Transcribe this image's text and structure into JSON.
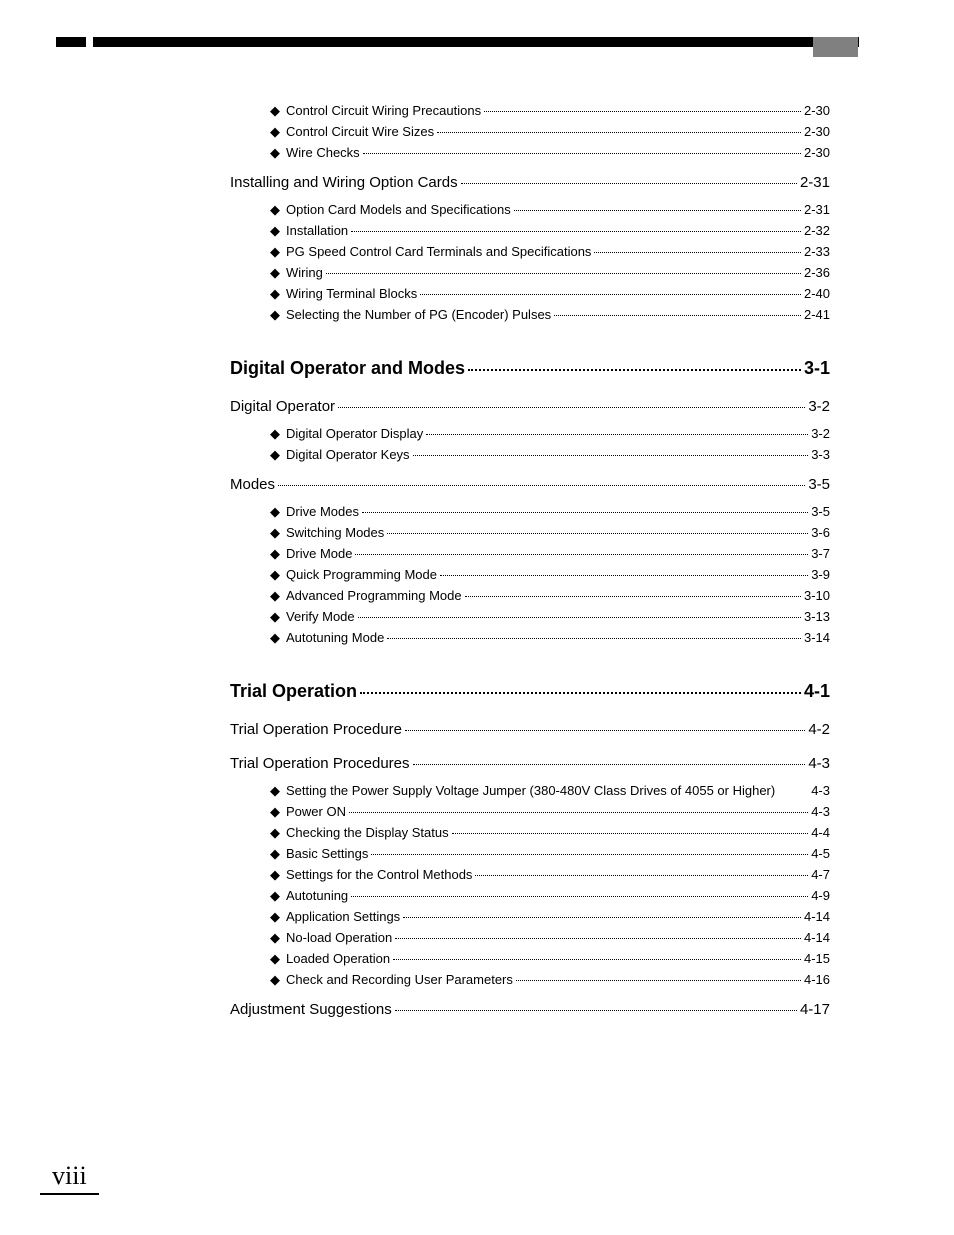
{
  "page_number": "viii",
  "colors": {
    "text": "#000000",
    "background": "#ffffff",
    "tab": "#808080"
  },
  "typography": {
    "sub_fontsize": 13,
    "section_fontsize": 15,
    "chapter_fontsize": 18,
    "pagenum_fontsize": 26
  },
  "toc": {
    "block1": {
      "subs_a": [
        {
          "label": "Control Circuit Wiring Precautions",
          "page": "2-30"
        },
        {
          "label": "Control Circuit Wire Sizes",
          "page": "2-30"
        },
        {
          "label": "Wire Checks",
          "page": "2-30"
        }
      ],
      "section1": {
        "label": "Installing and Wiring Option Cards",
        "page": "2-31"
      },
      "subs_b": [
        {
          "label": "Option Card Models and Specifications",
          "page": "2-31"
        },
        {
          "label": "Installation",
          "page": "2-32"
        },
        {
          "label": "PG Speed Control Card Terminals and Specifications",
          "page": "2-33"
        },
        {
          "label": "Wiring",
          "page": "2-36"
        },
        {
          "label": "Wiring Terminal Blocks",
          "page": "2-40"
        },
        {
          "label": "Selecting the Number of PG (Encoder) Pulses",
          "page": "2-41"
        }
      ]
    },
    "chapter3": {
      "num": "3",
      "title": "Digital Operator and Modes",
      "page": "3-1",
      "section1": {
        "label": "Digital Operator",
        "page": "3-2"
      },
      "subs_a": [
        {
          "label": "Digital Operator Display",
          "page": "3-2"
        },
        {
          "label": "Digital Operator Keys",
          "page": "3-3"
        }
      ],
      "section2": {
        "label": "Modes",
        "page": "3-5"
      },
      "subs_b": [
        {
          "label": "Drive Modes",
          "page": "3-5"
        },
        {
          "label": "Switching Modes",
          "page": "3-6"
        },
        {
          "label": "Drive Mode",
          "page": "3-7"
        },
        {
          "label": "Quick Programming Mode",
          "page": "3-9"
        },
        {
          "label": "Advanced Programming Mode",
          "page": "3-10"
        },
        {
          "label": "Verify Mode",
          "page": "3-13"
        },
        {
          "label": "Autotuning Mode",
          "page": "3-14"
        }
      ]
    },
    "chapter4": {
      "num": "4",
      "title": "Trial Operation",
      "page": "4-1",
      "section1": {
        "label": "Trial Operation Procedure",
        "page": "4-2"
      },
      "section2": {
        "label": "Trial Operation Procedures",
        "page": "4-3"
      },
      "long_sub": {
        "label": "Setting the Power Supply Voltage Jumper (380-480V Class Drives of 4055 or Higher)",
        "page": "4-3"
      },
      "subs_a": [
        {
          "label": "Power ON",
          "page": "4-3"
        },
        {
          "label": "Checking the Display Status",
          "page": "4-4"
        },
        {
          "label": "Basic Settings",
          "page": "4-5"
        },
        {
          "label": "Settings for the Control Methods",
          "page": "4-7"
        },
        {
          "label": "Autotuning",
          "page": "4-9"
        },
        {
          "label": "Application Settings",
          "page": "4-14"
        },
        {
          "label": "No-load Operation",
          "page": "4-14"
        },
        {
          "label": "Loaded Operation",
          "page": "4-15"
        },
        {
          "label": "Check and Recording User Parameters",
          "page": "4-16"
        }
      ],
      "section3": {
        "label": "Adjustment Suggestions",
        "page": "4-17"
      }
    }
  }
}
